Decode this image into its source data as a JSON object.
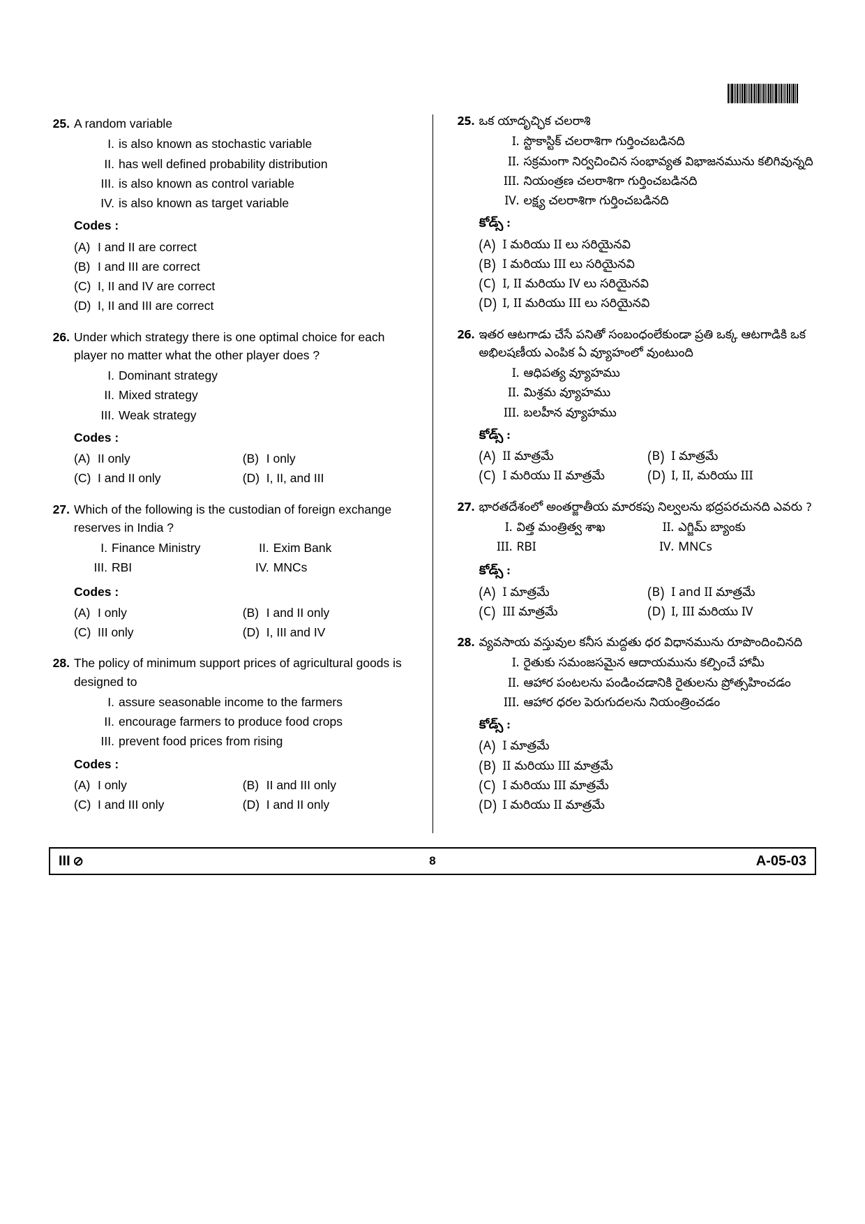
{
  "barcode_pattern": [
    2,
    1,
    3,
    1,
    1,
    2,
    1,
    1,
    2,
    3,
    1,
    1,
    1,
    2,
    1,
    2,
    1,
    3,
    1,
    1,
    2,
    1,
    1,
    2,
    2,
    1,
    1,
    3,
    1,
    1,
    2,
    1,
    1,
    1,
    2,
    2,
    1,
    3,
    1,
    2
  ],
  "footer": {
    "left": "III",
    "page": "8",
    "right": "A-05-03"
  },
  "left": {
    "q25": {
      "num": "25.",
      "stem": "A random variable",
      "items": [
        {
          "l": "I.",
          "t": "is also known as stochastic variable"
        },
        {
          "l": "II.",
          "t": "has well defined probability distribution"
        },
        {
          "l": "III.",
          "t": "is also known as control variable"
        },
        {
          "l": "IV.",
          "t": "is also known as target variable"
        }
      ],
      "codes": "Codes :",
      "opts": [
        {
          "l": "(A)",
          "t": "I and II are correct"
        },
        {
          "l": "(B)",
          "t": "I and III are correct"
        },
        {
          "l": "(C)",
          "t": "I, II and IV are correct"
        },
        {
          "l": "(D)",
          "t": "I, II and III are correct"
        }
      ]
    },
    "q26": {
      "num": "26.",
      "stem": "Under which strategy there is one optimal choice for each player no matter what the other player does ?",
      "items": [
        {
          "l": "I.",
          "t": "Dominant strategy"
        },
        {
          "l": "II.",
          "t": "Mixed strategy"
        },
        {
          "l": "III.",
          "t": "Weak strategy"
        }
      ],
      "codes": "Codes :",
      "opts": [
        {
          "l": "(A)",
          "t": "II only"
        },
        {
          "l": "(B)",
          "t": "I only"
        },
        {
          "l": "(C)",
          "t": "I and II only"
        },
        {
          "l": "(D)",
          "t": "I, II, and III"
        }
      ]
    },
    "q27": {
      "num": "27.",
      "stem": "Which of the following is the custodian of foreign exchange reserves in India ?",
      "items": [
        {
          "l": "I.",
          "t": "Finance Ministry"
        },
        {
          "l": "II.",
          "t": "Exim Bank"
        },
        {
          "l": "III.",
          "t": "RBI"
        },
        {
          "l": "IV.",
          "t": "MNCs"
        }
      ],
      "codes": "Codes :",
      "opts": [
        {
          "l": "(A)",
          "t": "I only"
        },
        {
          "l": "(B)",
          "t": "I and II only"
        },
        {
          "l": "(C)",
          "t": "III only"
        },
        {
          "l": "(D)",
          "t": "I, III and IV"
        }
      ]
    },
    "q28": {
      "num": "28.",
      "stem": "The policy of minimum support prices of agricultural goods is designed to",
      "items": [
        {
          "l": "I.",
          "t": "assure seasonable income to the farmers"
        },
        {
          "l": "II.",
          "t": "encourage farmers to produce food crops"
        },
        {
          "l": "III.",
          "t": "prevent food prices from rising"
        }
      ],
      "codes": "Codes :",
      "opts": [
        {
          "l": "(A)",
          "t": "I only"
        },
        {
          "l": "(B)",
          "t": "II and III only"
        },
        {
          "l": "(C)",
          "t": "I and III only"
        },
        {
          "l": "(D)",
          "t": "I and II only"
        }
      ]
    }
  },
  "right": {
    "q25": {
      "num": "25.",
      "stem": "ఒక యాదృచ్ఛిక చలరాశి",
      "items": [
        {
          "l": "I.",
          "t": "స్టొకాస్టిక్ చలరాశిగా గుర్తించబడినది"
        },
        {
          "l": "II.",
          "t": "సక్రమంగా నిర్వచించిన సంభావ్యత విభాజనమును కలిగివున్నది"
        },
        {
          "l": "III.",
          "t": "నియంత్రణ చలరాశిగా గుర్తించబడినది"
        },
        {
          "l": "IV.",
          "t": "లక్ష్య చలరాశిగా గుర్తించబడినది"
        }
      ],
      "codes": "కోడ్స్ :",
      "opts": [
        {
          "l": "(A)",
          "t": "I మరియు II లు సరియైనవి"
        },
        {
          "l": "(B)",
          "t": "I మరియు III లు సరియైనవి"
        },
        {
          "l": "(C)",
          "t": "I, II మరియు IV లు సరియైనవి"
        },
        {
          "l": "(D)",
          "t": "I, II మరియు III లు సరియైనవి"
        }
      ]
    },
    "q26": {
      "num": "26.",
      "stem": "ఇతర ఆటగాడు చేసే పనితో సంబంధంలేకుండా ప్రతి ఒక్క ఆటగాడికి ఒక అభిలషణీయ ఎంపిక ఏ వ్యూహంలో వుంటుంది",
      "items": [
        {
          "l": "I.",
          "t": "ఆధిపత్య వ్యూహము"
        },
        {
          "l": "II.",
          "t": "మిశ్రమ వ్యూహము"
        },
        {
          "l": "III.",
          "t": "బలహీన వ్యూహము"
        }
      ],
      "codes": "కోడ్స్ :",
      "opts": [
        {
          "l": "(A)",
          "t": "II మాత్రమే"
        },
        {
          "l": "(B)",
          "t": "I మాత్రమే"
        },
        {
          "l": "(C)",
          "t": "I మరియు II మాత్రమే"
        },
        {
          "l": "(D)",
          "t": "I, II, మరియు III"
        }
      ]
    },
    "q27": {
      "num": "27.",
      "stem": "భారతదేశంలో అంతర్జాతీయ మారకపు నిల్వలను భద్రపరచునది ఎవరు ?",
      "items": [
        {
          "l": "I.",
          "t": "విత్త మంత్రిత్వ శాఖ"
        },
        {
          "l": "II.",
          "t": "ఎగ్జిమ్ బ్యాంకు"
        },
        {
          "l": "III.",
          "t": "RBI"
        },
        {
          "l": "IV.",
          "t": "MNCs"
        }
      ],
      "codes": "కోడ్స్ :",
      "opts": [
        {
          "l": "(A)",
          "t": "I మాత్రమే"
        },
        {
          "l": "(B)",
          "t": "I and II మాత్రమే"
        },
        {
          "l": "(C)",
          "t": "III మాత్రమే"
        },
        {
          "l": "(D)",
          "t": "I, III మరియు IV"
        }
      ]
    },
    "q28": {
      "num": "28.",
      "stem": "వ్యవసాయ వస్తువుల కనీస మద్దతు ధర విధానమును రూపొందించినది",
      "items": [
        {
          "l": "I.",
          "t": "రైతుకు సమంజసమైన ఆదాయమును కల్పించే హామీ"
        },
        {
          "l": "II.",
          "t": "ఆహార పంటలను పండించడానికి రైతులను ప్రోత్సహించడం"
        },
        {
          "l": "III.",
          "t": "ఆహార ధరల పెరుగుదలను నియంత్రించడం"
        }
      ],
      "codes": "కోడ్స్ :",
      "opts": [
        {
          "l": "(A)",
          "t": "I మాత్రమే"
        },
        {
          "l": "(B)",
          "t": "II మరియు III మాత్రమే"
        },
        {
          "l": "(C)",
          "t": "I మరియు III మాత్రమే"
        },
        {
          "l": "(D)",
          "t": "I  మరియు II మాత్రమే"
        }
      ]
    }
  }
}
